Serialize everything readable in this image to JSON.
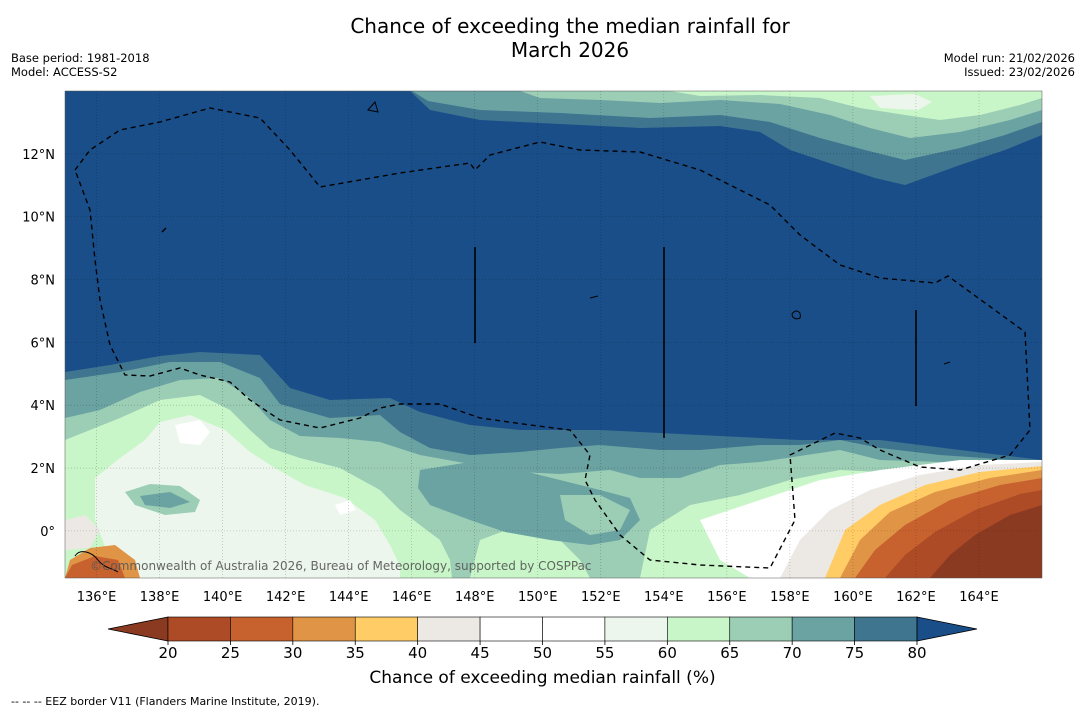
{
  "title_line1": "Chance of exceeding the median rainfall for",
  "title_line2": "March 2026",
  "base_period": "Base period: 1981-2018",
  "model": "Model: ACCESS-S2",
  "model_run": "Model run: 21/02/2026",
  "issued": "Issued: 23/02/2026",
  "attribution": "©Commonwealth of Australia 2026, Bureau of Meteorology, supported by COSPPac",
  "footnote": "--  --  -- EEZ border V11 (Flanders Marine Institute, 2019).",
  "colorbar": {
    "title": "Chance of exceeding median rainfall (%)",
    "ticks": [
      "20",
      "25",
      "30",
      "35",
      "40",
      "45",
      "50",
      "55",
      "60",
      "65",
      "70",
      "75",
      "80"
    ],
    "colors": [
      "#8b3a22",
      "#ad4b27",
      "#c7622f",
      "#e09446",
      "#ffcc66",
      "#ece9e5",
      "#ffffff",
      "#ffffff",
      "#ecf6ec",
      "#c8f6c8",
      "#9ccdb5",
      "#6ba3a3",
      "#3f758f",
      "#1a4e89"
    ]
  },
  "chart_data": {
    "type": "heatmap",
    "x_axis": {
      "unit": "longitude",
      "range": [
        135,
        166
      ],
      "ticks": [
        "136°E",
        "138°E",
        "140°E",
        "142°E",
        "144°E",
        "146°E",
        "148°E",
        "150°E",
        "152°E",
        "154°E",
        "156°E",
        "158°E",
        "160°E",
        "162°E",
        "164°E"
      ],
      "tick_values": [
        136,
        138,
        140,
        142,
        144,
        146,
        148,
        150,
        152,
        154,
        156,
        158,
        160,
        162,
        164
      ]
    },
    "y_axis": {
      "unit": "latitude",
      "range": [
        -1.5,
        14
      ],
      "ticks": [
        "12°N",
        "10°N",
        "8°N",
        "6°N",
        "4°N",
        "2°N",
        "0°"
      ],
      "tick_values": [
        12,
        10,
        8,
        6,
        4,
        2,
        0
      ]
    },
    "grid": true,
    "regions": [
      {
        "description": "northern band near 12-14N, 148-165E",
        "value_range": "60-75"
      },
      {
        "description": "central bulk 4N-12N",
        "value_range": ">80"
      },
      {
        "description": "southwest near equator 136-150E",
        "value_range": "55-70"
      },
      {
        "description": "southeast corner 157-166E, south of 2N",
        "value_range": "20-40"
      }
    ]
  }
}
